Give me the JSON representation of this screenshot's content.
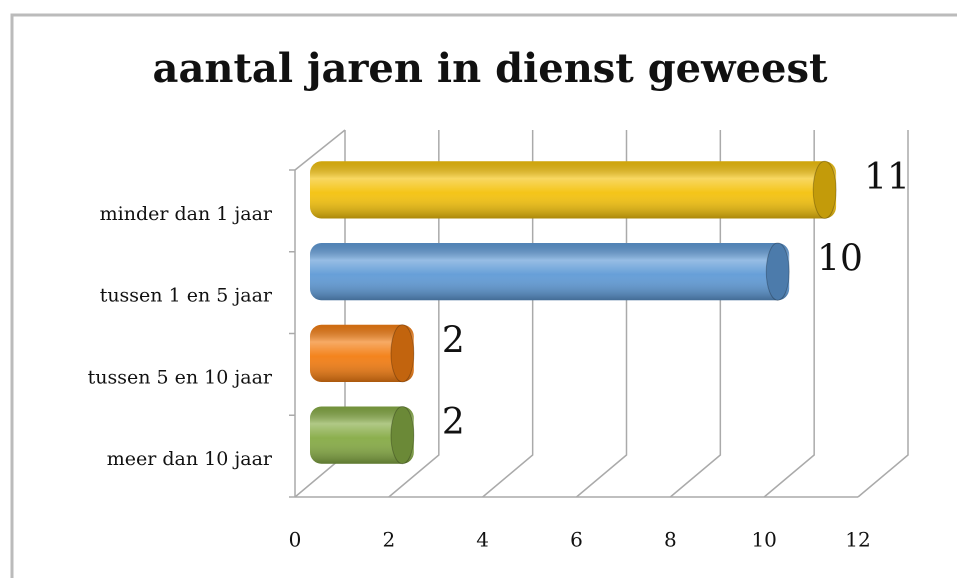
{
  "chart_data": {
    "type": "bar",
    "orientation": "horizontal",
    "title": "aantal jaren in dienst geweest",
    "categories": [
      "minder dan 1 jaar",
      "tussen 1 en 5 jaar",
      "tussen 5 en 10 jaar",
      "meer dan 10 jaar"
    ],
    "values": [
      11,
      10,
      2,
      2
    ],
    "colors": [
      "#f4c20d",
      "#5f9ad6",
      "#f37d12",
      "#86ab45"
    ],
    "xlim": [
      0,
      12
    ],
    "xticks": [
      0,
      2,
      4,
      6,
      8,
      10,
      12
    ],
    "grid": true
  }
}
